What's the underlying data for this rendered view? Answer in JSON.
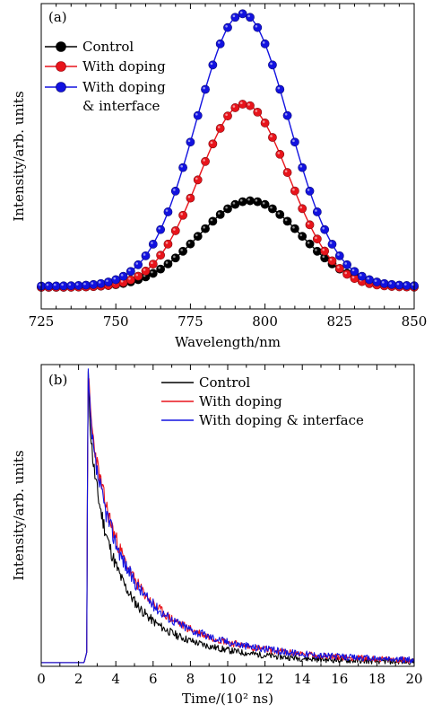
{
  "chart_data": [
    {
      "id": "a",
      "type": "line",
      "panel_label": "(a)",
      "xlabel": "Wavelength/nm",
      "ylabel": "Intensity/arb. units",
      "xlim": [
        725,
        850
      ],
      "ylim": [
        0,
        1.2
      ],
      "xticks": [
        725,
        750,
        775,
        800,
        825,
        850
      ],
      "markers": true,
      "legend": "top-left",
      "series": [
        {
          "name": "Control",
          "color": "#000000",
          "peak": 795,
          "amp": 0.34,
          "sigma": 17,
          "base": 0.085,
          "step": 2.5,
          "x": [
            725,
            750,
            775,
            785,
            795,
            805,
            825,
            850
          ],
          "y": [
            0.085,
            0.1,
            0.26,
            0.37,
            0.425,
            0.37,
            0.15,
            0.085
          ]
        },
        {
          "name": "With doping",
          "color": "#e8141b",
          "peak": 793,
          "amp": 0.72,
          "sigma": 15,
          "base": 0.085,
          "step": 2.5,
          "x": [
            725,
            750,
            775,
            785,
            793,
            805,
            825,
            850
          ],
          "y": [
            0.09,
            0.14,
            0.44,
            0.7,
            0.805,
            0.65,
            0.17,
            0.085
          ]
        },
        {
          "name": "With doping & interface",
          "color": "#1212e0",
          "peak": 792.5,
          "amp": 1.07,
          "sigma": 15.5,
          "base": 0.09,
          "step": 2.5,
          "x": [
            725,
            750,
            775,
            785,
            792.5,
            805,
            825,
            850
          ],
          "y": [
            0.1,
            0.22,
            0.65,
            1.03,
            1.16,
            0.93,
            0.22,
            0.09
          ]
        }
      ]
    },
    {
      "id": "b",
      "type": "line",
      "panel_label": "(b)",
      "xlabel": "Time/(10² ns)",
      "ylabel": "Intensity/arb. units",
      "xlim": [
        0,
        20
      ],
      "ylim": [
        0,
        1.0
      ],
      "xticks": [
        0,
        2,
        4,
        6,
        8,
        10,
        12,
        14,
        16,
        18,
        20
      ],
      "markers": false,
      "legend": "top-right",
      "series": [
        {
          "name": "Control",
          "color": "#000000",
          "rise": 2.45,
          "peak_t": 2.5,
          "amp": 0.78,
          "tau": 2.0,
          "noise": 0.022,
          "seed": 11,
          "x": [
            0,
            2.4,
            2.5,
            3,
            4,
            6,
            8,
            10,
            14,
            20
          ],
          "y": [
            0.01,
            0.03,
            1.0,
            0.55,
            0.4,
            0.22,
            0.12,
            0.07,
            0.03,
            0.01
          ]
        },
        {
          "name": "With doping",
          "color": "#e8141b",
          "rise": 2.45,
          "peak_t": 2.5,
          "amp": 0.85,
          "tau": 2.5,
          "noise": 0.022,
          "seed": 23,
          "x": [
            0,
            2.4,
            2.5,
            3,
            4,
            6,
            8,
            10,
            14,
            20
          ],
          "y": [
            0.01,
            0.03,
            1.0,
            0.68,
            0.46,
            0.26,
            0.14,
            0.08,
            0.035,
            0.01
          ]
        },
        {
          "name": "With doping & interface",
          "color": "#1212e0",
          "rise": 2.45,
          "peak_t": 2.5,
          "amp": 0.8,
          "tau": 2.6,
          "noise": 0.024,
          "seed": 37,
          "x": [
            0,
            2.4,
            2.5,
            3,
            4,
            6,
            8,
            10,
            14,
            20
          ],
          "y": [
            0.01,
            0.03,
            1.0,
            0.58,
            0.42,
            0.26,
            0.15,
            0.09,
            0.04,
            0.015
          ]
        }
      ]
    }
  ]
}
